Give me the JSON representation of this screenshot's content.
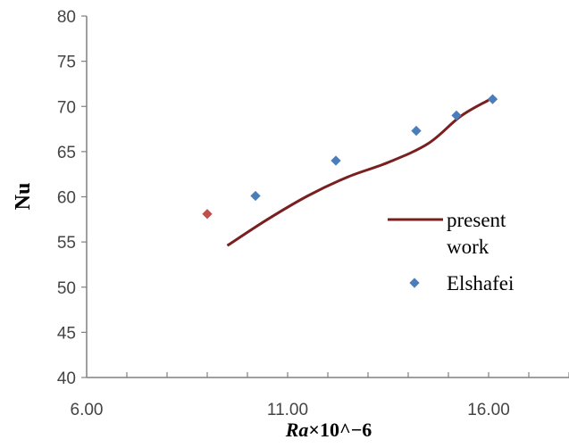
{
  "chart_data": {
    "type": "line",
    "ylabel": "Nu",
    "xlabel": {
      "italic": "Ra",
      "rest": "×10^−6"
    },
    "xlim": [
      6,
      18
    ],
    "ylim": [
      40,
      80
    ],
    "xticks": [
      6,
      11,
      16
    ],
    "xtick_labels": [
      "6.00",
      "11.00",
      "16.00"
    ],
    "yticks": [
      40,
      45,
      50,
      55,
      60,
      65,
      70,
      75,
      80
    ],
    "ytick_labels": [
      "40",
      "45",
      "50",
      "55",
      "60",
      "65",
      "70",
      "75",
      "80"
    ],
    "x_minor_step": 1,
    "grid": false,
    "legend_position": "right",
    "legend_lines": {
      "present": [
        "present",
        "work"
      ],
      "elshafei": [
        "Elshafei"
      ]
    },
    "series": [
      {
        "name": "present work",
        "kind": "line",
        "color": "#7a1f1f",
        "x": [
          9.5,
          10.5,
          11.5,
          12.5,
          13.5,
          14.5,
          15.3,
          16.0
        ],
        "y": [
          54.6,
          57.5,
          60.1,
          62.2,
          63.8,
          65.9,
          68.9,
          70.7
        ]
      },
      {
        "name": "Elshafei",
        "kind": "scatter",
        "color": "#4a7ebb",
        "x": [
          10.2,
          12.2,
          14.2,
          15.2,
          16.1
        ],
        "y": [
          60.1,
          64.0,
          67.3,
          69.0,
          70.8
        ]
      }
    ],
    "extra_points": [
      {
        "x": 9.0,
        "y": 58.1,
        "color": "#c0504d"
      }
    ]
  }
}
